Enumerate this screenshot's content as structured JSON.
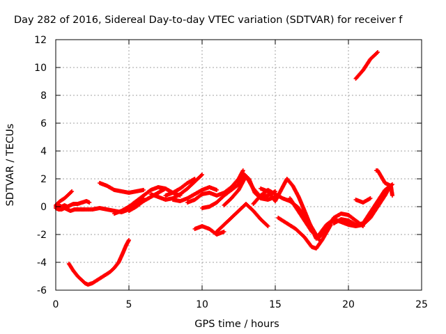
{
  "chart_data": {
    "type": "scatter",
    "title": "Day 282 of 2016, Sidereal Day-to-day VTEC variation (SDTVAR) for receiver f",
    "xlabel": "GPS time / hours",
    "ylabel": "SDTVAR / TECUs",
    "xlim": [
      0,
      25
    ],
    "ylim": [
      -6,
      12
    ],
    "xticks": [
      "0",
      "5",
      "10",
      "15",
      "20",
      "25"
    ],
    "yticks": [
      "-6",
      "-4",
      "-2",
      "0",
      "2",
      "4",
      "6",
      "8",
      "10",
      "12"
    ],
    "grid": true,
    "marker": "plus",
    "color": "#ff0000",
    "series": [
      {
        "name": "",
        "x": [
          0.0,
          0.2,
          0.4,
          0.6,
          0.8,
          1.0,
          1.3,
          1.6,
          2.0,
          2.5,
          3.0,
          3.5,
          4.0,
          4.5,
          5.0,
          5.5,
          6.0
        ],
        "y": [
          -0.1,
          -0.2,
          -0.2,
          -0.1,
          -0.2,
          -0.3,
          -0.2,
          -0.2,
          -0.2,
          -0.2,
          -0.1,
          -0.2,
          -0.3,
          -0.4,
          -0.2,
          0.2,
          0.6
        ]
      },
      {
        "name": "",
        "x": [
          0.0,
          0.2,
          0.4,
          0.6,
          0.8,
          1.0,
          1.2,
          1.5,
          1.8,
          2.1,
          2.3
        ],
        "y": [
          0.0,
          0.1,
          0.0,
          0.1,
          0.0,
          0.1,
          0.2,
          0.2,
          0.3,
          0.4,
          0.3
        ]
      },
      {
        "name": "",
        "x": [
          0.0,
          0.3,
          0.6,
          0.9,
          1.1
        ],
        "y": [
          0.1,
          0.4,
          0.6,
          0.9,
          1.1
        ]
      },
      {
        "name": "",
        "x": [
          0.9,
          1.2,
          1.5,
          1.8,
          2.0,
          2.2,
          2.5,
          2.8,
          3.1,
          3.4,
          3.7,
          4.0,
          4.3,
          4.6,
          4.8,
          5.0
        ],
        "y": [
          -4.1,
          -4.6,
          -5.0,
          -5.3,
          -5.5,
          -5.6,
          -5.5,
          -5.3,
          -5.1,
          -4.9,
          -4.7,
          -4.4,
          -4.0,
          -3.3,
          -2.8,
          -2.4
        ]
      },
      {
        "name": "",
        "x": [
          3.0,
          3.5,
          4.0,
          4.5,
          5.0,
          5.5,
          6.0
        ],
        "y": [
          1.7,
          1.5,
          1.2,
          1.1,
          1.0,
          1.1,
          1.2
        ]
      },
      {
        "name": "",
        "x": [
          4.0,
          4.5,
          5.0,
          5.5,
          6.0,
          6.5,
          7.0,
          7.5,
          8.0,
          8.5
        ],
        "y": [
          -0.5,
          -0.3,
          0.0,
          0.4,
          0.8,
          1.2,
          1.4,
          1.3,
          1.0,
          0.8
        ]
      },
      {
        "name": "",
        "x": [
          5.0,
          5.5,
          6.0,
          6.5,
          7.0,
          7.5
        ],
        "y": [
          -0.3,
          0.0,
          0.4,
          0.7,
          1.0,
          1.3
        ]
      },
      {
        "name": "",
        "x": [
          6.5,
          7.0,
          7.5,
          8.0,
          8.5,
          9.0,
          9.5,
          10.0
        ],
        "y": [
          0.9,
          0.7,
          0.5,
          0.6,
          0.9,
          1.3,
          1.8,
          2.3
        ]
      },
      {
        "name": "",
        "x": [
          7.5,
          8.0,
          8.5,
          9.0,
          9.5
        ],
        "y": [
          0.8,
          1.0,
          1.3,
          1.7,
          2.0
        ]
      },
      {
        "name": "",
        "x": [
          8.0,
          8.5,
          9.0,
          9.5,
          10.0,
          10.5,
          11.0
        ],
        "y": [
          0.5,
          0.4,
          0.6,
          0.9,
          1.2,
          1.4,
          1.2
        ]
      },
      {
        "name": "",
        "x": [
          9.0,
          9.5,
          10.0,
          10.5,
          11.0,
          11.5,
          12.0,
          12.5,
          12.8
        ],
        "y": [
          0.3,
          0.5,
          0.9,
          1.0,
          0.8,
          1.0,
          1.4,
          2.0,
          2.6
        ]
      },
      {
        "name": "",
        "x": [
          9.5,
          10.0,
          10.5,
          11.0,
          11.5
        ],
        "y": [
          -1.6,
          -1.4,
          -1.6,
          -2.0,
          -1.8
        ]
      },
      {
        "name": "",
        "x": [
          10.0,
          10.5,
          11.0,
          11.5,
          12.0,
          12.5,
          12.8,
          13.2,
          13.6,
          14.0,
          14.5,
          15.0
        ],
        "y": [
          -0.1,
          0.0,
          0.3,
          0.8,
          1.2,
          1.6,
          2.4,
          2.0,
          1.0,
          0.6,
          0.5,
          0.7
        ]
      },
      {
        "name": "",
        "x": [
          11.0,
          11.5,
          12.0,
          12.5,
          13.0,
          13.5,
          14.0,
          14.5
        ],
        "y": [
          -1.8,
          -1.3,
          -0.8,
          -0.3,
          0.2,
          -0.3,
          -0.9,
          -1.4
        ]
      },
      {
        "name": "",
        "x": [
          11.5,
          12.0,
          12.5,
          13.0,
          13.5,
          14.0,
          14.5,
          15.0
        ],
        "y": [
          0.1,
          0.6,
          1.2,
          2.2,
          1.3,
          0.7,
          0.8,
          1.1
        ]
      },
      {
        "name": "",
        "x": [
          13.5,
          14.0,
          14.5,
          15.0,
          15.5,
          16.0,
          16.5,
          17.0,
          17.5,
          18.0
        ],
        "y": [
          0.2,
          0.8,
          1.2,
          0.9,
          0.6,
          0.4,
          0.0,
          -0.6,
          -1.5,
          -2.4
        ]
      },
      {
        "name": "",
        "x": [
          14.0,
          14.5,
          15.0,
          15.5,
          15.8,
          16.2,
          16.6,
          17.0,
          17.5,
          17.8
        ],
        "y": [
          1.3,
          1.1,
          0.4,
          1.4,
          2.0,
          1.5,
          0.7,
          -0.3,
          -1.6,
          -2.3
        ]
      },
      {
        "name": "",
        "x": [
          15.2,
          15.8,
          16.4,
          17.0,
          17.5,
          17.8,
          18.2,
          18.8
        ],
        "y": [
          -0.8,
          -1.2,
          -1.6,
          -2.2,
          -2.9,
          -3.0,
          -2.4,
          -1.3
        ]
      },
      {
        "name": "",
        "x": [
          16.0,
          16.5,
          17.0,
          17.5,
          18.0,
          18.5,
          19.0,
          19.5,
          20.0,
          20.5,
          21.0
        ],
        "y": [
          0.6,
          -0.2,
          -1.0,
          -1.8,
          -2.2,
          -1.6,
          -0.8,
          -0.5,
          -0.6,
          -1.0,
          -1.4
        ]
      },
      {
        "name": "",
        "x": [
          18.0,
          18.5,
          19.0,
          19.5,
          20.0,
          20.5,
          21.0,
          21.5,
          22.0,
          22.5,
          22.8
        ],
        "y": [
          -2.0,
          -1.3,
          -0.9,
          -1.1,
          -1.3,
          -1.4,
          -1.3,
          -0.8,
          0.0,
          0.8,
          1.4
        ]
      },
      {
        "name": "",
        "x": [
          19.0,
          19.5,
          20.0,
          20.5,
          21.0,
          21.5,
          22.0,
          22.5,
          23.0
        ],
        "y": [
          -1.2,
          -0.9,
          -1.0,
          -1.3,
          -1.2,
          -0.4,
          0.4,
          1.2,
          1.6
        ]
      },
      {
        "name": "",
        "x": [
          20.5,
          21.0,
          21.5
        ],
        "y": [
          0.5,
          0.3,
          0.6
        ]
      },
      {
        "name": "",
        "x": [
          20.5,
          21.0,
          21.5,
          22.0
        ],
        "y": [
          9.2,
          9.8,
          10.6,
          11.1
        ]
      },
      {
        "name": "",
        "x": [
          21.9,
          22.0,
          22.5,
          22.9,
          23.0
        ],
        "y": [
          2.6,
          2.6,
          1.7,
          1.5,
          0.8
        ]
      }
    ]
  }
}
